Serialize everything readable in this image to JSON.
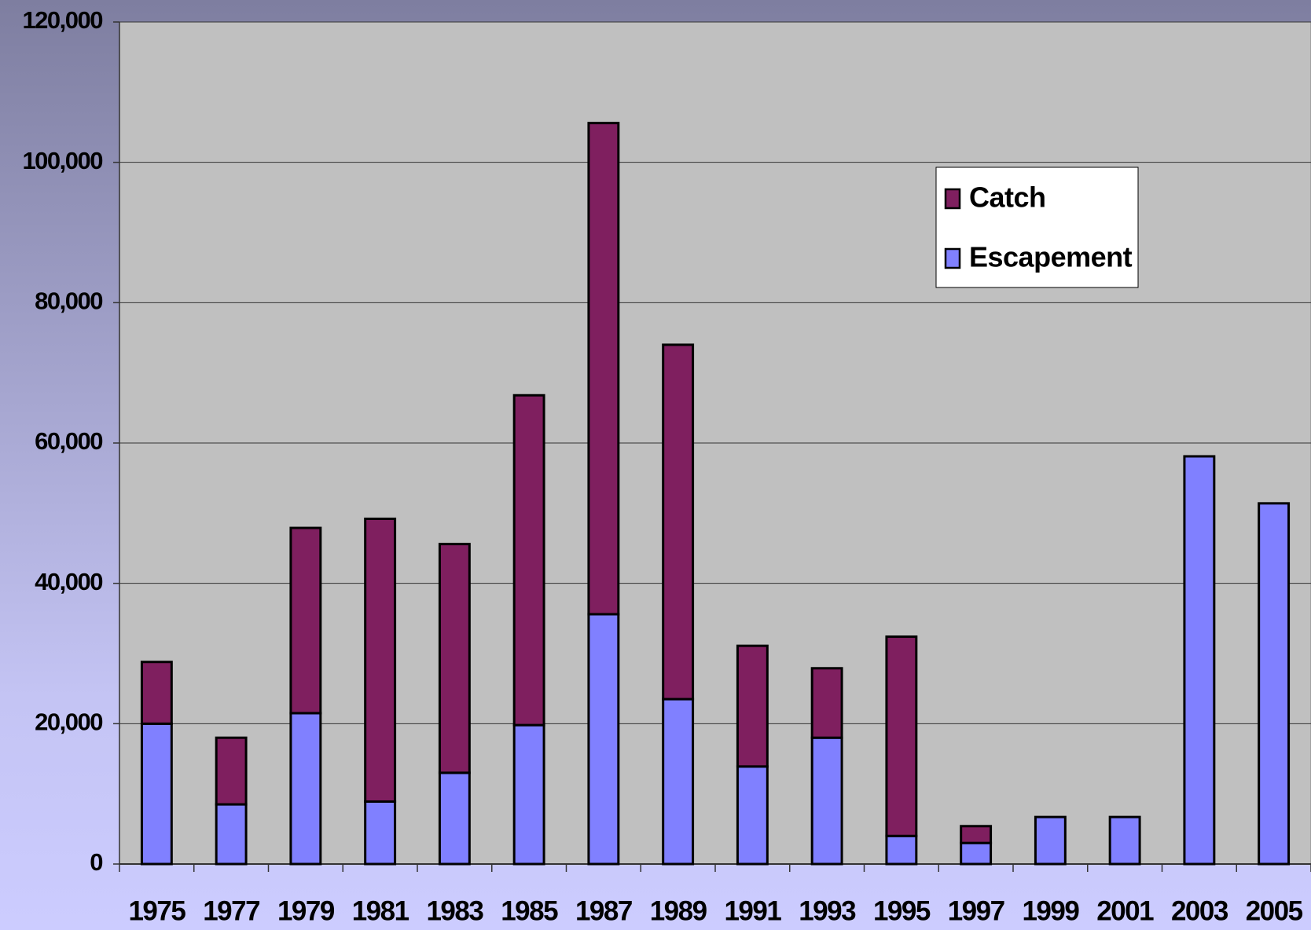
{
  "chart_data": {
    "type": "bar",
    "stacked": true,
    "categories": [
      "1975",
      "1977",
      "1979",
      "1981",
      "1983",
      "1985",
      "1987",
      "1989",
      "1991",
      "1993",
      "1995",
      "1997",
      "1999",
      "2001",
      "2003",
      "2005"
    ],
    "series": [
      {
        "name": "Escapement",
        "color": "#8080ff",
        "values": [
          20000,
          8500,
          21500,
          8900,
          13000,
          19800,
          35600,
          23500,
          13900,
          18000,
          4000,
          3000,
          6700,
          6700,
          58100,
          51400
        ]
      },
      {
        "name": "Catch",
        "color": "#7f1f5f",
        "values": [
          8800,
          9500,
          26400,
          40300,
          32600,
          47000,
          70000,
          50500,
          17200,
          9900,
          28400,
          2400,
          0,
          0,
          0,
          0
        ]
      }
    ],
    "ylim": [
      0,
      120000
    ],
    "yticks": [
      0,
      {
        "value": 20000,
        "label": "20,000"
      },
      {
        "value": 40000,
        "label": "40,000"
      },
      {
        "value": 60000,
        "label": "60,000"
      },
      {
        "value": 80000,
        "label": "80,000"
      },
      {
        "value": 100000,
        "label": "100,000"
      },
      {
        "value": 120000,
        "label": "120,000"
      }
    ],
    "grid": true,
    "legend": "upper right"
  }
}
